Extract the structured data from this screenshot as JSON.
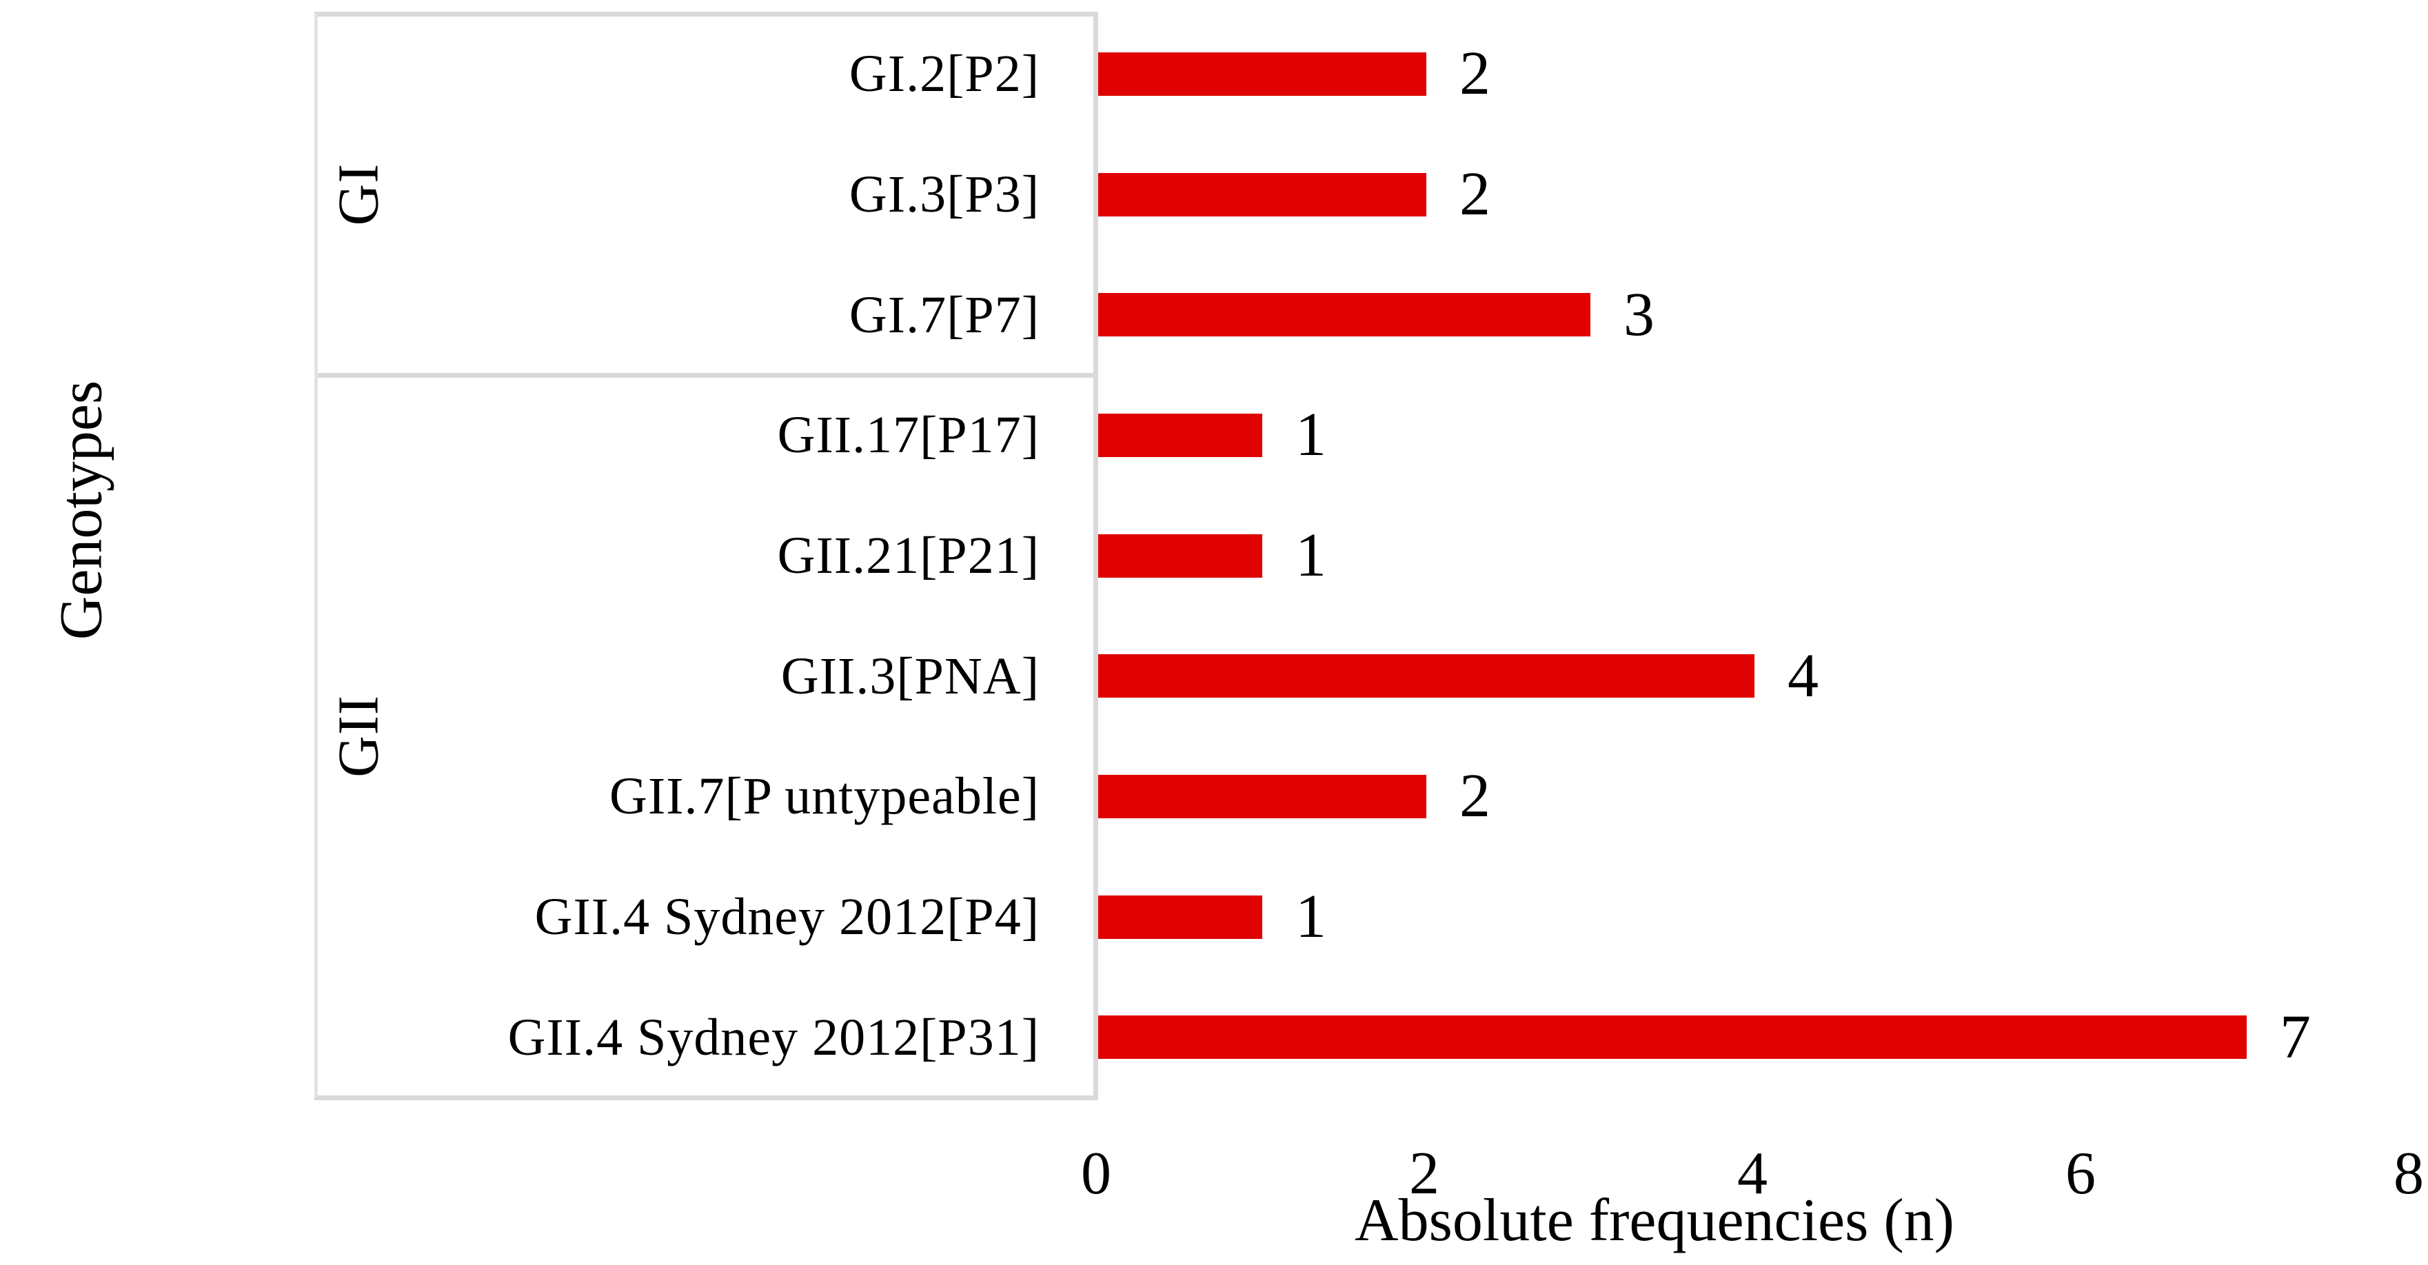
{
  "colors": {
    "bar": "#e00202",
    "grid": "#d9d9d9",
    "grid_faint": "#e2e2e2",
    "text": "#000000",
    "background": "#ffffff"
  },
  "chart_data": {
    "type": "bar",
    "orientation": "horizontal",
    "title": "",
    "xlabel": "Absolute frequencies (n)",
    "ylabel": "Genotypes",
    "xlim": [
      0,
      8
    ],
    "xticks": [
      "0",
      "2",
      "4",
      "6",
      "8"
    ],
    "grid": false,
    "value_labels": true,
    "bar_color": "#e00202",
    "groups": [
      {
        "name": "GI",
        "items": [
          {
            "label": "GI.2[P2]",
            "value": 2
          },
          {
            "label": "GI.3[P3]",
            "value": 2
          },
          {
            "label": "GI.7[P7]",
            "value": 3
          }
        ]
      },
      {
        "name": "GII",
        "items": [
          {
            "label": "GII.17[P17]",
            "value": 1
          },
          {
            "label": "GII.21[P21]",
            "value": 1
          },
          {
            "label": "GII.3[PNA]",
            "value": 4
          },
          {
            "label": "GII.7[P untypeable]",
            "value": 2
          },
          {
            "label": "GII.4 Sydney 2012[P4]",
            "value": 1
          },
          {
            "label": "GII.4 Sydney 2012[P31]",
            "value": 7
          }
        ]
      }
    ]
  }
}
